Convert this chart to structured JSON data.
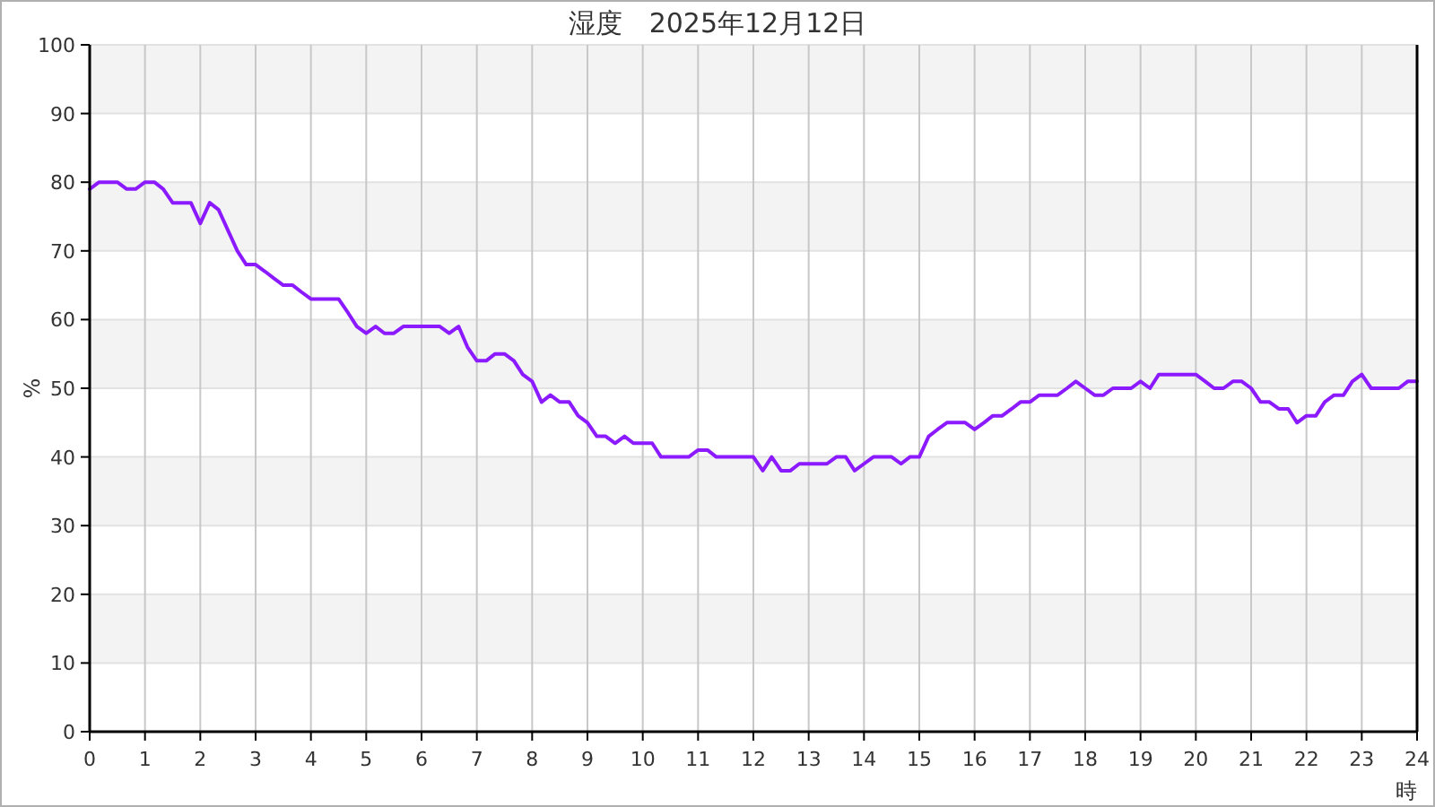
{
  "chart_data": {
    "type": "line",
    "title": "湿度　2025年12月12日",
    "xlabel": "時",
    "ylabel": "%",
    "x": [
      0,
      0.17,
      0.33,
      0.5,
      0.67,
      0.83,
      1,
      1.17,
      1.33,
      1.5,
      1.67,
      1.83,
      2,
      2.17,
      2.33,
      2.5,
      2.67,
      2.83,
      3,
      3.17,
      3.33,
      3.5,
      3.67,
      3.83,
      4,
      4.17,
      4.33,
      4.5,
      4.67,
      4.83,
      5,
      5.17,
      5.33,
      5.5,
      5.67,
      5.83,
      6,
      6.17,
      6.33,
      6.5,
      6.67,
      6.83,
      7,
      7.17,
      7.33,
      7.5,
      7.67,
      7.83,
      8,
      8.17,
      8.33,
      8.5,
      8.67,
      8.83,
      9,
      9.17,
      9.33,
      9.5,
      9.67,
      9.83,
      10,
      10.17,
      10.33,
      10.5,
      10.67,
      10.83,
      11,
      11.17,
      11.33,
      11.5,
      11.67,
      11.83,
      12,
      12.17,
      12.33,
      12.5,
      12.67,
      12.83,
      13,
      13.17,
      13.33,
      13.5,
      13.67,
      13.83,
      14,
      14.17,
      14.33,
      14.5,
      14.67,
      14.83,
      15,
      15.17,
      15.33,
      15.5,
      15.67,
      15.83,
      16,
      16.17,
      16.33,
      16.5,
      16.67,
      16.83,
      17,
      17.17,
      17.33,
      17.5,
      17.67,
      17.83,
      18,
      18.17,
      18.33,
      18.5,
      18.67,
      18.83,
      19,
      19.17,
      19.33,
      19.5,
      19.67,
      19.83,
      20,
      20.17,
      20.33,
      20.5,
      20.67,
      20.83,
      21,
      21.17,
      21.33,
      21.5,
      21.67,
      21.83,
      22,
      22.17,
      22.33,
      22.5,
      22.67,
      22.83,
      23,
      23.17,
      23.33,
      23.5,
      23.67,
      23.83,
      24
    ],
    "values": [
      79,
      80,
      80,
      80,
      79,
      79,
      80,
      80,
      79,
      77,
      77,
      77,
      74,
      77,
      76,
      73,
      70,
      68,
      68,
      67,
      66,
      65,
      65,
      64,
      63,
      63,
      63,
      63,
      61,
      59,
      58,
      59,
      58,
      58,
      59,
      59,
      59,
      59,
      59,
      58,
      59,
      56,
      54,
      54,
      55,
      55,
      54,
      52,
      51,
      48,
      49,
      48,
      48,
      46,
      45,
      43,
      43,
      42,
      43,
      42,
      42,
      42,
      40,
      40,
      40,
      40,
      41,
      41,
      40,
      40,
      40,
      40,
      40,
      38,
      40,
      38,
      38,
      39,
      39,
      39,
      39,
      40,
      40,
      38,
      39,
      40,
      40,
      40,
      39,
      40,
      40,
      43,
      44,
      45,
      45,
      45,
      44,
      45,
      46,
      46,
      47,
      48,
      48,
      49,
      49,
      49,
      50,
      51,
      50,
      49,
      49,
      50,
      50,
      50,
      51,
      50,
      52,
      52,
      52,
      52,
      52,
      51,
      50,
      50,
      51,
      51,
      50,
      48,
      48,
      47,
      47,
      45,
      46,
      46,
      48,
      49,
      49,
      51,
      52,
      50,
      50,
      50,
      50,
      51,
      51
    ],
    "color": "#8c1aff",
    "xlim": [
      0,
      24
    ],
    "xticks": [
      0,
      1,
      2,
      3,
      4,
      5,
      6,
      7,
      8,
      9,
      10,
      11,
      12,
      13,
      14,
      15,
      16,
      17,
      18,
      19,
      20,
      21,
      22,
      23,
      24
    ],
    "ylim": [
      0,
      100
    ],
    "yticks": [
      0,
      10,
      20,
      30,
      40,
      50,
      60,
      70,
      80,
      90,
      100
    ],
    "grid": true
  }
}
